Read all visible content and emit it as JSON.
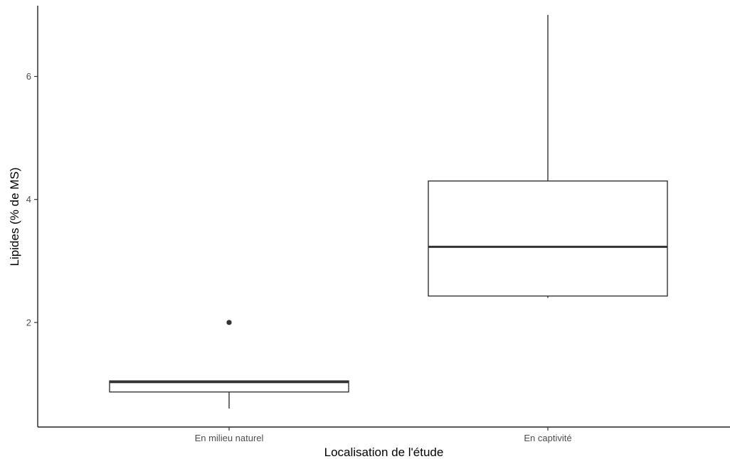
{
  "chart_data": {
    "type": "boxplot",
    "title": "",
    "xlabel": "Localisation de l'étude",
    "ylabel": "Lipides (% de MS)",
    "ylim": [
      0.3,
      7.15
    ],
    "y_ticks": [
      2,
      4,
      6
    ],
    "categories": [
      "En milieu naturel",
      "En captivité"
    ],
    "boxes": [
      {
        "name": "En milieu naturel",
        "min": 0.6,
        "q1": 0.87,
        "median": 1.03,
        "q3": 1.05,
        "max": 1.05,
        "outliers": [
          2.0
        ]
      },
      {
        "name": "En captivité",
        "min": 2.4,
        "q1": 2.43,
        "median": 3.23,
        "q3": 4.3,
        "max": 7.0,
        "outliers": []
      }
    ],
    "grid": false,
    "colors": {
      "box_fill": "#ffffff",
      "box_stroke": "#333333",
      "axis": "#222222",
      "tick_text": "#4d4d4d"
    }
  }
}
